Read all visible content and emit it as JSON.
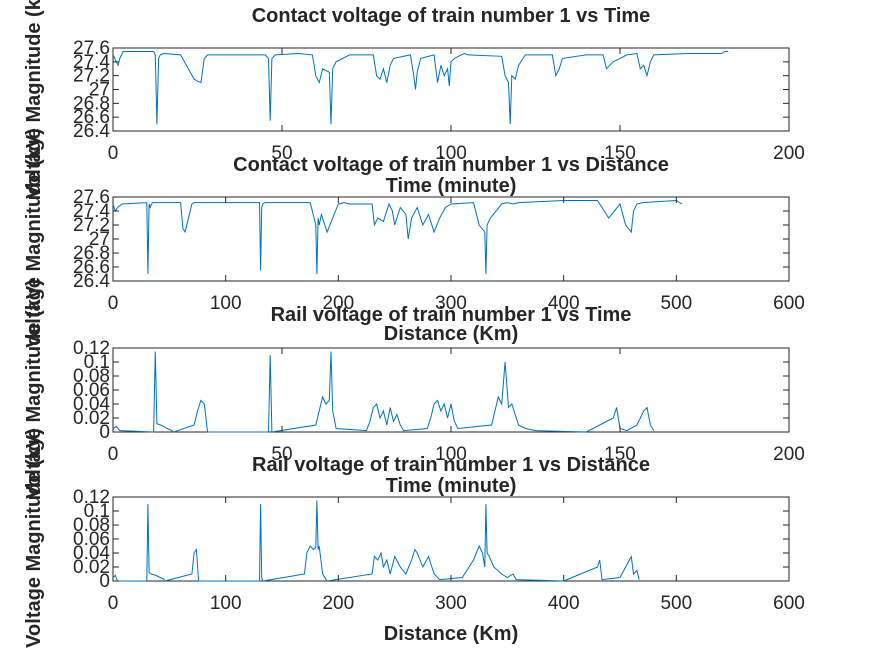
{
  "chart_data": [
    {
      "type": "line",
      "title": "Contact voltage of train number 1 vs Time",
      "xlabel": "Time (minute)",
      "ylabel": "Voltage Magnitude (kV)",
      "xlim": [
        0,
        200
      ],
      "ylim": [
        26.4,
        27.6
      ],
      "xticks": [
        "0",
        "50",
        "100",
        "150",
        "200"
      ],
      "xtick_values": [
        0,
        50,
        100,
        150,
        200
      ],
      "yticks": [
        "26.4",
        "26.6",
        "26.8",
        "27",
        "27.2",
        "27.4",
        "27.6"
      ],
      "ytick_values": [
        26.4,
        26.6,
        26.8,
        27.0,
        27.2,
        27.4,
        27.6
      ],
      "color": "#0072bd",
      "series": [
        {
          "x": [
            0,
            0.5,
            1,
            1.5,
            2,
            2.5,
            3,
            12,
            12.5,
            13,
            13.5,
            14,
            15,
            20,
            24,
            25,
            26,
            27,
            28,
            45,
            46,
            46.5,
            47,
            48,
            55,
            59,
            60,
            61,
            62,
            64,
            64.5,
            65,
            66,
            70,
            77,
            78,
            79,
            80,
            81,
            82,
            83,
            88,
            89,
            89.5,
            90,
            91,
            95,
            96,
            97,
            98,
            99,
            99.5,
            100,
            101,
            103,
            104,
            105,
            115,
            116,
            117,
            117.5,
            118,
            119,
            120,
            122,
            130,
            131,
            132,
            133,
            140,
            145,
            146,
            148,
            150,
            152,
            155,
            156,
            157,
            158,
            159,
            160,
            170,
            180,
            181,
            182
          ],
          "y": [
            27.5,
            27.45,
            27.4,
            27.35,
            27.45,
            27.5,
            27.55,
            27.55,
            27.5,
            26.5,
            27.45,
            27.5,
            27.52,
            27.5,
            27.15,
            27.12,
            27.1,
            27.45,
            27.5,
            27.5,
            27.45,
            26.55,
            27.45,
            27.5,
            27.52,
            27.5,
            27.2,
            27.1,
            27.3,
            27.25,
            26.5,
            27.3,
            27.4,
            27.5,
            27.5,
            27.2,
            27.15,
            27.3,
            27.1,
            27.35,
            27.45,
            27.5,
            27.2,
            27.0,
            27.25,
            27.45,
            27.5,
            27.1,
            27.35,
            27.2,
            27.3,
            27.05,
            27.4,
            27.45,
            27.5,
            27.52,
            27.5,
            27.48,
            27.2,
            27.1,
            26.5,
            27.2,
            27.15,
            27.35,
            27.5,
            27.5,
            27.2,
            27.3,
            27.45,
            27.5,
            27.5,
            27.3,
            27.4,
            27.45,
            27.5,
            27.52,
            27.3,
            27.35,
            27.2,
            27.4,
            27.5,
            27.52,
            27.52,
            27.55,
            27.55
          ]
        }
      ]
    },
    {
      "type": "line",
      "title": "Contact voltage of train number 1 vs Distance",
      "xlabel": "Distance (Km)",
      "ylabel": "Voltage Magnitude (kV)",
      "xlim": [
        0,
        600
      ],
      "ylim": [
        26.4,
        27.6
      ],
      "xticks": [
        "0",
        "100",
        "200",
        "300",
        "400",
        "500",
        "600"
      ],
      "xtick_values": [
        0,
        100,
        200,
        300,
        400,
        500,
        600
      ],
      "yticks": [
        "26.4",
        "26.6",
        "26.8",
        "27",
        "27.2",
        "27.4",
        "27.6"
      ],
      "ytick_values": [
        26.4,
        26.6,
        26.8,
        27.0,
        27.2,
        27.4,
        27.6
      ],
      "color": "#0072bd",
      "series": [
        {
          "x": [
            0,
            2,
            4,
            8,
            30,
            31,
            32,
            33,
            35,
            60,
            62,
            64,
            70,
            72,
            130,
            131,
            132,
            133,
            135,
            175,
            180,
            181,
            182,
            183,
            185,
            190,
            195,
            200,
            205,
            210,
            230,
            232,
            235,
            240,
            245,
            248,
            250,
            255,
            260,
            262,
            265,
            270,
            275,
            280,
            285,
            290,
            295,
            300,
            320,
            325,
            330,
            331,
            332,
            335,
            340,
            345,
            350,
            355,
            360,
            400,
            430,
            440,
            445,
            450,
            455,
            460,
            462,
            465,
            470,
            500,
            505
          ],
          "y": [
            27.5,
            27.4,
            27.45,
            27.5,
            27.52,
            26.5,
            27.5,
            27.45,
            27.52,
            27.52,
            27.15,
            27.1,
            27.5,
            27.52,
            27.52,
            26.55,
            27.45,
            27.5,
            27.52,
            27.52,
            27.2,
            26.5,
            27.3,
            27.2,
            27.35,
            27.1,
            27.3,
            27.5,
            27.52,
            27.5,
            27.5,
            27.2,
            27.3,
            27.25,
            27.5,
            27.4,
            27.2,
            27.45,
            27.35,
            27.0,
            27.3,
            27.45,
            27.2,
            27.35,
            27.1,
            27.3,
            27.45,
            27.5,
            27.52,
            27.2,
            27.1,
            26.5,
            27.2,
            27.3,
            27.4,
            27.5,
            27.52,
            27.5,
            27.52,
            27.55,
            27.55,
            27.3,
            27.4,
            27.5,
            27.2,
            27.1,
            27.4,
            27.5,
            27.52,
            27.55,
            27.5
          ]
        }
      ]
    },
    {
      "type": "line",
      "title": "Rail voltage of train number 1 vs Time",
      "xlabel": "Time (minute)",
      "ylabel": "Voltage Magnitude (kV)",
      "xlim": [
        0,
        200
      ],
      "ylim": [
        0,
        0.12
      ],
      "xticks": [
        "0",
        "50",
        "100",
        "150",
        "200"
      ],
      "xtick_values": [
        0,
        50,
        100,
        150,
        200
      ],
      "yticks": [
        "0",
        "0.02",
        "0.04",
        "0.06",
        "0.08",
        "0.1",
        "0.12"
      ],
      "ytick_values": [
        0,
        0.02,
        0.04,
        0.06,
        0.08,
        0.1,
        0.12
      ],
      "color": "#0072bd",
      "series": [
        {
          "x": [
            0,
            1,
            2,
            12,
            12.5,
            13,
            14,
            15,
            16,
            17,
            18,
            24,
            25,
            26,
            27,
            28,
            46,
            46.5,
            47,
            60,
            61,
            62,
            63,
            64,
            64.5,
            65,
            66,
            75,
            76,
            77,
            78,
            79,
            80,
            81,
            82,
            83,
            84,
            85,
            86,
            93,
            94,
            95,
            96,
            97,
            98,
            99,
            100,
            101,
            102,
            112,
            113,
            114,
            115,
            116,
            117,
            118,
            119,
            120,
            122,
            125,
            140,
            148,
            149,
            150,
            152,
            155,
            156,
            157,
            158,
            159,
            160
          ],
          "y": [
            0.005,
            0.008,
            0.002,
            0,
            0.115,
            0.012,
            0.01,
            0.008,
            0.005,
            0.003,
            0,
            0.01,
            0.03,
            0.045,
            0.04,
            0,
            0,
            0.11,
            0,
            0.01,
            0.03,
            0.05,
            0.04,
            0.045,
            0.115,
            0.03,
            0.005,
            0.002,
            0.015,
            0.035,
            0.04,
            0.02,
            0.03,
            0.01,
            0.035,
            0.015,
            0.025,
            0.01,
            0.002,
            0.005,
            0.02,
            0.04,
            0.045,
            0.03,
            0.04,
            0.02,
            0.04,
            0.015,
            0.005,
            0.01,
            0.03,
            0.05,
            0.04,
            0.1,
            0.035,
            0.04,
            0.025,
            0.01,
            0.005,
            0.002,
            0,
            0.02,
            0.035,
            0.005,
            0.002,
            0.01,
            0.02,
            0.03,
            0.035,
            0.01,
            0.002
          ]
        }
      ]
    },
    {
      "type": "line",
      "title": "Rail voltage of train number 1 vs Distance",
      "xlabel": "Distance (Km)",
      "ylabel": "Voltage Magnitude (kV)",
      "xlim": [
        0,
        600
      ],
      "ylim": [
        0,
        0.12
      ],
      "xticks": [
        "0",
        "100",
        "200",
        "300",
        "400",
        "500",
        "600"
      ],
      "xtick_values": [
        0,
        100,
        200,
        300,
        400,
        500,
        600
      ],
      "yticks": [
        "0",
        "0.02",
        "0.04",
        "0.06",
        "0.08",
        "0.1",
        "0.12"
      ],
      "ytick_values": [
        0,
        0.02,
        0.04,
        0.06,
        0.08,
        0.1,
        0.12
      ],
      "color": "#0072bd",
      "series": [
        {
          "x": [
            0,
            2,
            4,
            30,
            31,
            32,
            34,
            38,
            42,
            45,
            46,
            70,
            72,
            74,
            76,
            130,
            131,
            132,
            133,
            170,
            172,
            175,
            178,
            180,
            181,
            182,
            183,
            186,
            190,
            230,
            232,
            235,
            238,
            240,
            243,
            246,
            250,
            255,
            260,
            265,
            268,
            270,
            275,
            280,
            285,
            290,
            310,
            320,
            325,
            328,
            330,
            331,
            332,
            334,
            338,
            345,
            350,
            355,
            358,
            400,
            430,
            432,
            434,
            450,
            455,
            460,
            462,
            465,
            467
          ],
          "y": [
            0.005,
            0.008,
            0,
            0,
            0.11,
            0.012,
            0.01,
            0.008,
            0.005,
            0.003,
            0,
            0.01,
            0.04,
            0.045,
            0,
            0,
            0.11,
            0.005,
            0,
            0.01,
            0.04,
            0.05,
            0.045,
            0.048,
            0.115,
            0.045,
            0.05,
            0.01,
            0,
            0.01,
            0.035,
            0.03,
            0.04,
            0.02,
            0.03,
            0.01,
            0.035,
            0.02,
            0.01,
            0.03,
            0.045,
            0.04,
            0.02,
            0.035,
            0.01,
            0.002,
            0.005,
            0.03,
            0.05,
            0.04,
            0.02,
            0.11,
            0.04,
            0.035,
            0.02,
            0.01,
            0.005,
            0.01,
            0.002,
            0,
            0.02,
            0.03,
            0.002,
            0.005,
            0.02,
            0.035,
            0.01,
            0.015,
            0.002
          ]
        }
      ]
    }
  ]
}
